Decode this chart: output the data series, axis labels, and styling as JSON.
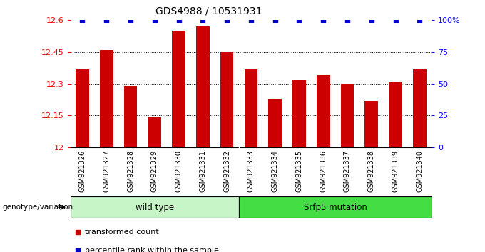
{
  "title": "GDS4988 / 10531931",
  "samples": [
    "GSM921326",
    "GSM921327",
    "GSM921328",
    "GSM921329",
    "GSM921330",
    "GSM921331",
    "GSM921332",
    "GSM921333",
    "GSM921334",
    "GSM921335",
    "GSM921336",
    "GSM921337",
    "GSM921338",
    "GSM921339",
    "GSM921340"
  ],
  "bar_values": [
    12.37,
    12.46,
    12.29,
    12.14,
    12.55,
    12.57,
    12.45,
    12.37,
    12.23,
    12.32,
    12.34,
    12.3,
    12.22,
    12.31,
    12.37
  ],
  "percentile_values": [
    100,
    100,
    100,
    100,
    100,
    100,
    100,
    100,
    100,
    100,
    100,
    100,
    100,
    100,
    100
  ],
  "bar_color": "#cc0000",
  "percentile_color": "#0000cc",
  "ymin": 12.0,
  "ymax": 12.6,
  "yticks": [
    12.0,
    12.15,
    12.3,
    12.45,
    12.6
  ],
  "ytick_labels": [
    "12",
    "12.15",
    "12.3",
    "12.45",
    "12.6"
  ],
  "right_yticks": [
    0,
    25,
    50,
    75,
    100
  ],
  "right_ytick_labels": [
    "0",
    "25",
    "50",
    "75",
    "100%"
  ],
  "wt_label": "wild type",
  "wt_color": "#c8f5c8",
  "mut_label": "Srfp5 mutation",
  "mut_color": "#44dd44",
  "wt_count": 7,
  "mut_count": 8,
  "genotype_label": "genotype/variation",
  "legend_tc": "transformed count",
  "legend_pr": "percentile rank within the sample",
  "tc_color": "#cc0000",
  "pr_color": "#0000cc",
  "title_fontsize": 10,
  "tick_fontsize": 7.5,
  "grid_ticks": [
    12.15,
    12.3,
    12.45
  ]
}
